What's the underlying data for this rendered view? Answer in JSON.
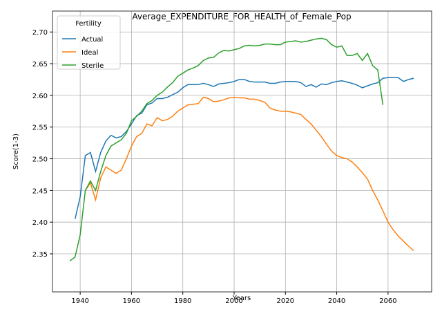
{
  "chart_data": {
    "type": "line",
    "title": "Average_EXPENDITURE_FOR_HEALTH_of_Female_Pop",
    "x_label": "Years",
    "y_label": "Score(1-3)",
    "x": [
      1936,
      1938,
      1940,
      1942,
      1944,
      1946,
      1948,
      1950,
      1952,
      1954,
      1956,
      1958,
      1960,
      1962,
      1964,
      1966,
      1968,
      1970,
      1972,
      1974,
      1976,
      1978,
      1980,
      1982,
      1984,
      1986,
      1988,
      1990,
      1992,
      1994,
      1996,
      1998,
      2000,
      2002,
      2004,
      2006,
      2008,
      2010,
      2012,
      2014,
      2016,
      2018,
      2020,
      2022,
      2024,
      2026,
      2028,
      2030,
      2032,
      2034,
      2036,
      2038,
      2040,
      2042,
      2044,
      2046,
      2048,
      2050,
      2052,
      2054,
      2056,
      2058,
      2060,
      2062,
      2064,
      2066,
      2068,
      2070
    ],
    "series": [
      {
        "name": "Actual",
        "color": "#1f77b4",
        "values": [
          null,
          2.405,
          2.44,
          2.505,
          2.51,
          2.48,
          2.51,
          2.528,
          2.537,
          2.533,
          2.535,
          2.543,
          2.555,
          2.568,
          2.572,
          2.585,
          2.588,
          2.595,
          2.595,
          2.597,
          2.601,
          2.605,
          2.612,
          2.617,
          2.617,
          2.617,
          2.619,
          2.617,
          2.614,
          2.618,
          2.619,
          2.62,
          2.622,
          2.625,
          2.625,
          2.622,
          2.621,
          2.621,
          2.621,
          2.619,
          2.619,
          2.621,
          2.622,
          2.622,
          2.622,
          2.62,
          2.614,
          2.617,
          2.613,
          2.618,
          2.617,
          2.62,
          2.622,
          2.623,
          2.621,
          2.619,
          2.616,
          2.612,
          2.615,
          2.618,
          2.62,
          2.627,
          2.628,
          2.628,
          2.628,
          2.622,
          2.625,
          2.627
        ]
      },
      {
        "name": "Ideal",
        "color": "#ff7f0e",
        "values": [
          null,
          null,
          null,
          2.45,
          2.462,
          2.435,
          2.47,
          2.487,
          2.482,
          2.477,
          2.482,
          2.5,
          2.52,
          2.535,
          2.54,
          2.555,
          2.552,
          2.565,
          2.56,
          2.562,
          2.567,
          2.575,
          2.58,
          2.585,
          2.586,
          2.587,
          2.597,
          2.595,
          2.59,
          2.591,
          2.593,
          2.596,
          2.597,
          2.596,
          2.596,
          2.594,
          2.594,
          2.592,
          2.589,
          2.58,
          2.577,
          2.575,
          2.575,
          2.574,
          2.572,
          2.57,
          2.562,
          2.555,
          2.545,
          2.535,
          2.523,
          2.512,
          2.505,
          2.502,
          2.5,
          2.495,
          2.487,
          2.478,
          2.468,
          2.45,
          2.435,
          2.418,
          2.4,
          2.388,
          2.378,
          2.37,
          2.362,
          2.355
        ]
      },
      {
        "name": "Sterile",
        "color": "#2ca02c",
        "values": [
          2.339,
          2.345,
          2.38,
          2.45,
          2.465,
          2.45,
          2.48,
          2.505,
          2.52,
          2.525,
          2.53,
          2.54,
          2.56,
          2.567,
          2.575,
          2.587,
          2.592,
          2.6,
          2.605,
          2.613,
          2.62,
          2.63,
          2.635,
          2.64,
          2.643,
          2.647,
          2.655,
          2.659,
          2.66,
          2.667,
          2.671,
          2.67,
          2.672,
          2.674,
          2.678,
          2.679,
          2.678,
          2.679,
          2.681,
          2.681,
          2.68,
          2.68,
          2.684,
          2.685,
          2.686,
          2.684,
          2.685,
          2.687,
          2.689,
          2.69,
          2.688,
          2.68,
          2.676,
          2.678,
          2.663,
          2.663,
          2.666,
          2.655,
          2.666,
          2.647,
          2.64,
          2.585,
          null,
          null,
          null,
          null,
          null,
          null
        ]
      }
    ],
    "xlim": [
      1929.2,
      2077
    ],
    "ylim": [
      2.29,
      2.733
    ],
    "xticks": [
      1940,
      1960,
      1980,
      2000,
      2020,
      2040,
      2060
    ],
    "yticks": [
      2.35,
      {
        "value": 2.4,
        "label": "2.40"
      },
      2.45,
      {
        "value": 2.5,
        "label": "2.50"
      },
      2.55,
      {
        "value": 2.6,
        "label": "2.60"
      },
      2.65,
      {
        "value": 2.7,
        "label": "2.70"
      }
    ],
    "grid": true,
    "legend_title": "Fertility",
    "legend_position": "upper-left"
  }
}
